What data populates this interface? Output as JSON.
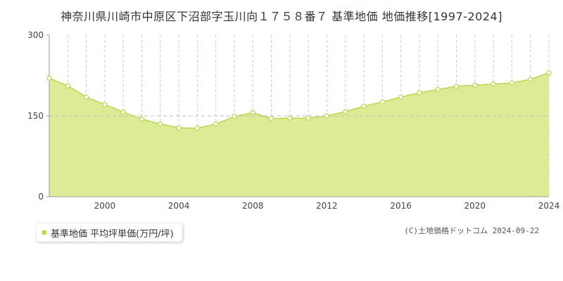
{
  "title": "神奈川県川崎市中原区下沼部字玉川向１７５８番７ 基準地価 地価推移[1997-2024]",
  "legend": {
    "label": "基準地価 平均坪単価(万円/坪)"
  },
  "credit": "(C)土地価格ドットコム 2024-09-22",
  "colors": {
    "fill": "#dcec96",
    "line": "#b8d84c",
    "point_fill": "#ffffff",
    "point_stroke": "#b8d84c",
    "swatch": "#b8d84c",
    "grid": "#cccccc"
  },
  "chart_data": {
    "type": "area",
    "x": [
      1997,
      1998,
      1999,
      2000,
      2001,
      2002,
      2003,
      2004,
      2005,
      2006,
      2007,
      2008,
      2009,
      2010,
      2011,
      2012,
      2013,
      2014,
      2015,
      2016,
      2017,
      2018,
      2019,
      2020,
      2021,
      2022,
      2023,
      2024
    ],
    "series": [
      {
        "name": "基準地価 平均坪単価(万円/坪)",
        "values": [
          220,
          206,
          185,
          171,
          157,
          144,
          135,
          128,
          127,
          135,
          149,
          156,
          145,
          146,
          146,
          150,
          158,
          168,
          176,
          185,
          193,
          199,
          205,
          207,
          209,
          211,
          218,
          230
        ]
      }
    ],
    "xlim": [
      1997,
      2024
    ],
    "ylim": [
      0,
      300
    ],
    "yticks": [
      0,
      150,
      300
    ],
    "xticks": [
      2000,
      2004,
      2008,
      2012,
      2016,
      2020,
      2024
    ],
    "grid": {
      "horizontal": "dashed at 150",
      "vertical": "dashed per year"
    }
  }
}
